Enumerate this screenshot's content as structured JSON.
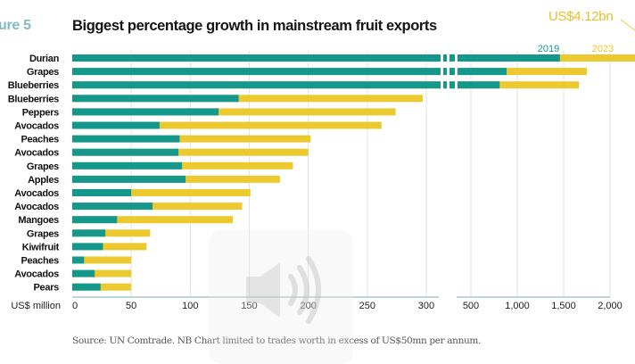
{
  "figure_label": "ure 5",
  "annotation": "US$4.12bn",
  "source": "Source: UN Comtrade. NB Chart limited to trades worth in excess of US$50mn per annum.",
  "colors": {
    "y2019": "#14988c",
    "y2023": "#ebc92f",
    "grid": "#e2e2e2",
    "axis": "#9bbfbf"
  },
  "overlay": {
    "icon": "volume-icon"
  },
  "chart_data": {
    "type": "bar",
    "orientation": "horizontal",
    "stacked": "overlay",
    "title": "Biggest percentage growth in mainstream fruit exports",
    "xlabel": "US$ million",
    "ylabel": "",
    "axis_break": [
      300,
      300
    ],
    "xlim": [
      0,
      2000
    ],
    "xticks": [
      "0",
      "50",
      "100",
      "150",
      "200",
      "250",
      "300",
      "500",
      "1,000",
      "1,500",
      "2,000"
    ],
    "xtick_values": [
      0,
      50,
      100,
      150,
      200,
      250,
      300,
      500,
      1000,
      1500,
      2000
    ],
    "grid": true,
    "legend": [
      "2019",
      "2023"
    ],
    "legend_position": "top-right",
    "categories": [
      "Durian",
      "Grapes",
      "Blueberries",
      "Blueberries",
      "Peppers",
      "Avocados",
      "Peaches",
      "Avocados",
      "Grapes",
      "Apples",
      "Avocados",
      "Avocados",
      "Mangoes",
      "Grapes",
      "Kiwifruit",
      "Peaches",
      "Avocados",
      "Pears"
    ],
    "series": [
      {
        "name": "2019",
        "values": [
          1460,
          885,
          810,
          141,
          124,
          74,
          91,
          90,
          93,
          96,
          50,
          68,
          38,
          28,
          26,
          10,
          19,
          24
        ]
      },
      {
        "name": "2023",
        "values": [
          4120,
          1750,
          1665,
          297,
          274,
          262,
          202,
          200,
          187,
          176,
          151,
          144,
          136,
          66,
          63,
          50,
          50,
          50
        ]
      }
    ],
    "annotations": [
      "US$4.12bn"
    ]
  }
}
